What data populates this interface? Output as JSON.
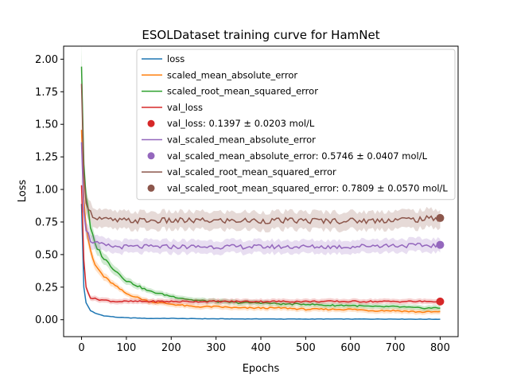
{
  "chart_data": {
    "type": "line",
    "title": "ESOLDataset training curve for HamNet",
    "xlabel": "Epochs",
    "ylabel": "Loss",
    "xlim": [
      -40,
      840
    ],
    "ylim": [
      -0.13,
      2.1
    ],
    "x_ticks": [
      0,
      100,
      200,
      300,
      400,
      500,
      600,
      700,
      800
    ],
    "y_ticks": [
      0.0,
      0.25,
      0.5,
      0.75,
      1.0,
      1.25,
      1.5,
      1.75,
      2.0
    ],
    "y_tick_labels": [
      "0.00",
      "0.25",
      "0.50",
      "0.75",
      "1.00",
      "1.25",
      "1.50",
      "1.75",
      "2.00"
    ],
    "legend_position": "top-right",
    "x": [
      0,
      5,
      10,
      20,
      30,
      50,
      75,
      100,
      150,
      200,
      250,
      300,
      350,
      400,
      450,
      500,
      550,
      600,
      650,
      700,
      750,
      800
    ],
    "series": [
      {
        "name": "loss",
        "color": "#1f77b4",
        "band": false,
        "values": [
          0.89,
          0.25,
          0.13,
          0.07,
          0.05,
          0.03,
          0.02,
          0.015,
          0.01,
          0.01,
          0.008,
          0.007,
          0.006,
          0.006,
          0.005,
          0.005,
          0.005,
          0.005,
          0.005,
          0.005,
          0.004,
          0.004
        ]
      },
      {
        "name": "scaled_mean_absolute_error",
        "color": "#ff7f0e",
        "band": true,
        "values": [
          1.5,
          0.95,
          0.72,
          0.52,
          0.42,
          0.33,
          0.26,
          0.2,
          0.14,
          0.12,
          0.1,
          0.1,
          0.09,
          0.09,
          0.09,
          0.08,
          0.08,
          0.08,
          0.07,
          0.07,
          0.06,
          0.06
        ]
      },
      {
        "name": "scaled_root_mean_squared_error",
        "color": "#2ca02c",
        "band": true,
        "values": [
          1.97,
          1.2,
          0.95,
          0.7,
          0.58,
          0.47,
          0.38,
          0.3,
          0.22,
          0.18,
          0.15,
          0.14,
          0.13,
          0.13,
          0.12,
          0.12,
          0.11,
          0.11,
          0.1,
          0.1,
          0.09,
          0.09
        ]
      },
      {
        "name": "val_loss",
        "color": "#d62728",
        "band": true,
        "values": [
          1.05,
          0.45,
          0.25,
          0.17,
          0.16,
          0.15,
          0.14,
          0.14,
          0.14,
          0.14,
          0.14,
          0.14,
          0.14,
          0.14,
          0.14,
          0.14,
          0.14,
          0.14,
          0.14,
          0.14,
          0.14,
          0.14
        ]
      },
      {
        "name": "val_scaled_mean_absolute_error",
        "color": "#9467bd",
        "band": true,
        "values": [
          1.4,
          0.85,
          0.7,
          0.61,
          0.59,
          0.57,
          0.56,
          0.56,
          0.56,
          0.56,
          0.56,
          0.56,
          0.56,
          0.56,
          0.56,
          0.56,
          0.56,
          0.56,
          0.57,
          0.57,
          0.57,
          0.57
        ]
      },
      {
        "name": "val_scaled_root_mean_squared_error",
        "color": "#8c564b",
        "band": true,
        "values": [
          1.76,
          1.1,
          0.92,
          0.82,
          0.79,
          0.77,
          0.76,
          0.76,
          0.76,
          0.76,
          0.76,
          0.76,
          0.76,
          0.76,
          0.76,
          0.76,
          0.76,
          0.76,
          0.76,
          0.77,
          0.77,
          0.78
        ]
      }
    ],
    "final_points": [
      {
        "label": "val_loss: 0.1397 ± 0.0203 mol/L",
        "x": 800,
        "y": 0.1397,
        "color": "#d62728"
      },
      {
        "label": "val_scaled_mean_absolute_error: 0.5746 ± 0.0407 mol/L",
        "x": 800,
        "y": 0.5746,
        "color": "#9467bd"
      },
      {
        "label": "val_scaled_root_mean_squared_error: 0.7809 ± 0.0570 mol/L",
        "x": 800,
        "y": 0.7809,
        "color": "#8c564b"
      }
    ],
    "legend": [
      {
        "kind": "line",
        "label": "loss",
        "color": "#1f77b4"
      },
      {
        "kind": "line",
        "label": "scaled_mean_absolute_error",
        "color": "#ff7f0e"
      },
      {
        "kind": "line",
        "label": "scaled_root_mean_squared_error",
        "color": "#2ca02c"
      },
      {
        "kind": "line",
        "label": "val_loss",
        "color": "#d62728"
      },
      {
        "kind": "marker",
        "label": "val_loss: 0.1397 ± 0.0203 mol/L",
        "color": "#d62728"
      },
      {
        "kind": "line",
        "label": "val_scaled_mean_absolute_error",
        "color": "#9467bd"
      },
      {
        "kind": "marker",
        "label": "val_scaled_mean_absolute_error: 0.5746 ± 0.0407 mol/L",
        "color": "#9467bd"
      },
      {
        "kind": "line",
        "label": "val_scaled_root_mean_squared_error",
        "color": "#8c564b"
      },
      {
        "kind": "marker",
        "label": "val_scaled_root_mean_squared_error: 0.7809 ± 0.0570 mol/L",
        "color": "#8c564b"
      }
    ]
  }
}
